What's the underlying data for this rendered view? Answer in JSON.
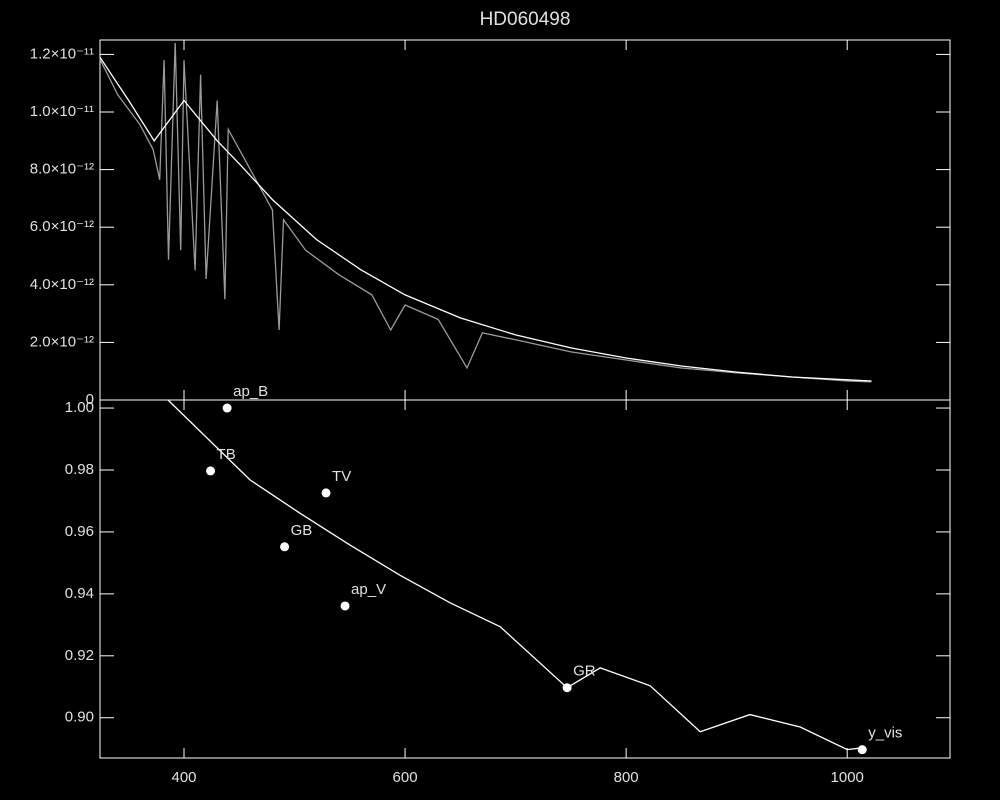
{
  "chart_data": [
    {
      "type": "line",
      "title": "HD060498",
      "xlim": [
        324,
        1093
      ],
      "ylim": [
        0,
        1.25e-11
      ],
      "yticks": [
        0,
        {
          "value": 2e-12,
          "label": "2.0×10⁻¹²"
        },
        {
          "value": 4e-12,
          "label": "4.0×10⁻¹²"
        },
        {
          "value": 6e-12,
          "label": "6.0×10⁻¹²"
        },
        {
          "value": 8e-12,
          "label": "8.0×10⁻¹²"
        },
        {
          "value": 1e-11,
          "label": "1.0×10⁻¹¹"
        },
        {
          "value": 1.2e-11,
          "label": "1.2×10⁻¹¹"
        }
      ],
      "series": [
        {
          "color": "#9a9a9a",
          "x": [
            324,
            340,
            360,
            372,
            378,
            382,
            386,
            392,
            397,
            400,
            410,
            415,
            420,
            430,
            437,
            440,
            450,
            460,
            470,
            480,
            486,
            490,
            510,
            540,
            570,
            587,
            600,
            630,
            656,
            670,
            700,
            750,
            800,
            850,
            900,
            950,
            1000,
            1022
          ],
          "values": [
            1.183e-11,
            1.06e-11,
            9.57e-12,
            8.7e-12,
            7.65e-12,
            1.18e-11,
            4.87e-12,
            1.24e-11,
            5.2e-12,
            1.18e-11,
            4.5e-12,
            1.13e-11,
            4.2e-12,
            1.04e-11,
            3.5e-12,
            9.4e-12,
            8.7e-12,
            8e-12,
            7.3e-12,
            6.6e-12,
            2.43e-12,
            6.26e-12,
            5.2e-12,
            4.35e-12,
            3.65e-12,
            2.43e-12,
            3.3e-12,
            2.8e-12,
            1.11e-12,
            2.33e-12,
            2.09e-12,
            1.67e-12,
            1.39e-12,
            1.11e-12,
            9.4e-13,
            8e-13,
            6.6e-13,
            6.3e-13
          ]
        },
        {
          "color": "#ffffff",
          "x": [
            324,
            350,
            373,
            400,
            430,
            450,
            480,
            520,
            560,
            600,
            650,
            700,
            750,
            800,
            850,
            900,
            950,
            1000,
            1022
          ],
          "values": [
            1.19e-11,
            1.04e-11,
            9e-12,
            1.04e-11,
            9e-12,
            8.2e-12,
            6.96e-12,
            5.57e-12,
            4.52e-12,
            3.65e-12,
            2.85e-12,
            2.26e-12,
            1.81e-12,
            1.46e-12,
            1.18e-12,
            9.7e-13,
            8e-13,
            7e-13,
            6.6e-13
          ]
        }
      ]
    },
    {
      "type": "scatter",
      "xlim": [
        324,
        1093
      ],
      "ylim": [
        0.887,
        1.0026
      ],
      "xticks": [
        400,
        600,
        800,
        1000
      ],
      "yticks": [
        {
          "value": 0.9,
          "label": "0.90"
        },
        0.92,
        0.94,
        0.96,
        0.98,
        {
          "value": 1.0,
          "label": "1.00"
        }
      ],
      "points": {
        "labels": [
          "ap_B",
          "TB",
          "TV",
          "GB",
          "ap_V",
          "GR",
          "y_vis"
        ],
        "x": [
          439,
          424,
          528.5,
          491,
          545.7,
          746.6,
          1013.6
        ],
        "values": [
          1.0,
          0.9797,
          0.9726,
          0.9552,
          0.9361,
          0.9097,
          0.8897
        ]
      },
      "fit": {
        "x": [
          385.5,
          459.7,
          505,
          550,
          595.5,
          640.7,
          686,
          746.6,
          776.5,
          821.8,
          867,
          912,
          957.5,
          1000,
          1013.6
        ],
        "values": [
          1.0026,
          0.9768,
          0.966,
          0.9558,
          0.946,
          0.9371,
          0.9294,
          0.9097,
          0.9161,
          0.9103,
          0.8955,
          0.901,
          0.897,
          0.8897,
          0.8903
        ]
      }
    }
  ]
}
